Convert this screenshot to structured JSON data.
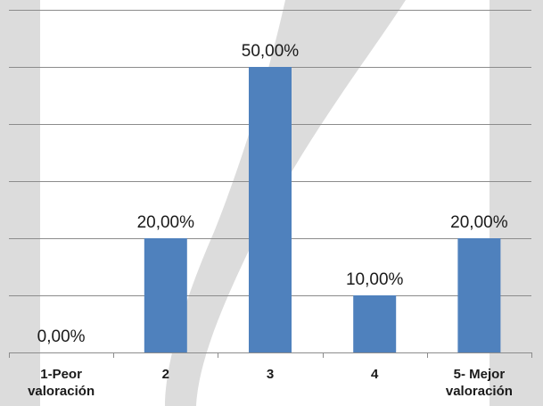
{
  "chart_data": {
    "type": "bar",
    "categories": [
      [
        "1-Peor",
        "valoración"
      ],
      [
        "2"
      ],
      [
        "3"
      ],
      [
        "4"
      ],
      [
        "5- Mejor",
        "valoración"
      ]
    ],
    "values": [
      0,
      20,
      50,
      10,
      20
    ],
    "data_labels": [
      "0,00%",
      "20,00%",
      "50,00%",
      "10,00%",
      "20,00%"
    ],
    "ylim": [
      0,
      60
    ],
    "y_gridlines": [
      10,
      20,
      30,
      40,
      50,
      60
    ],
    "grid": true,
    "legend": "none",
    "colors": {
      "bar": "#4f81bd",
      "grid": "#8c8c8c",
      "backdrop": "#d9d9d9"
    }
  }
}
